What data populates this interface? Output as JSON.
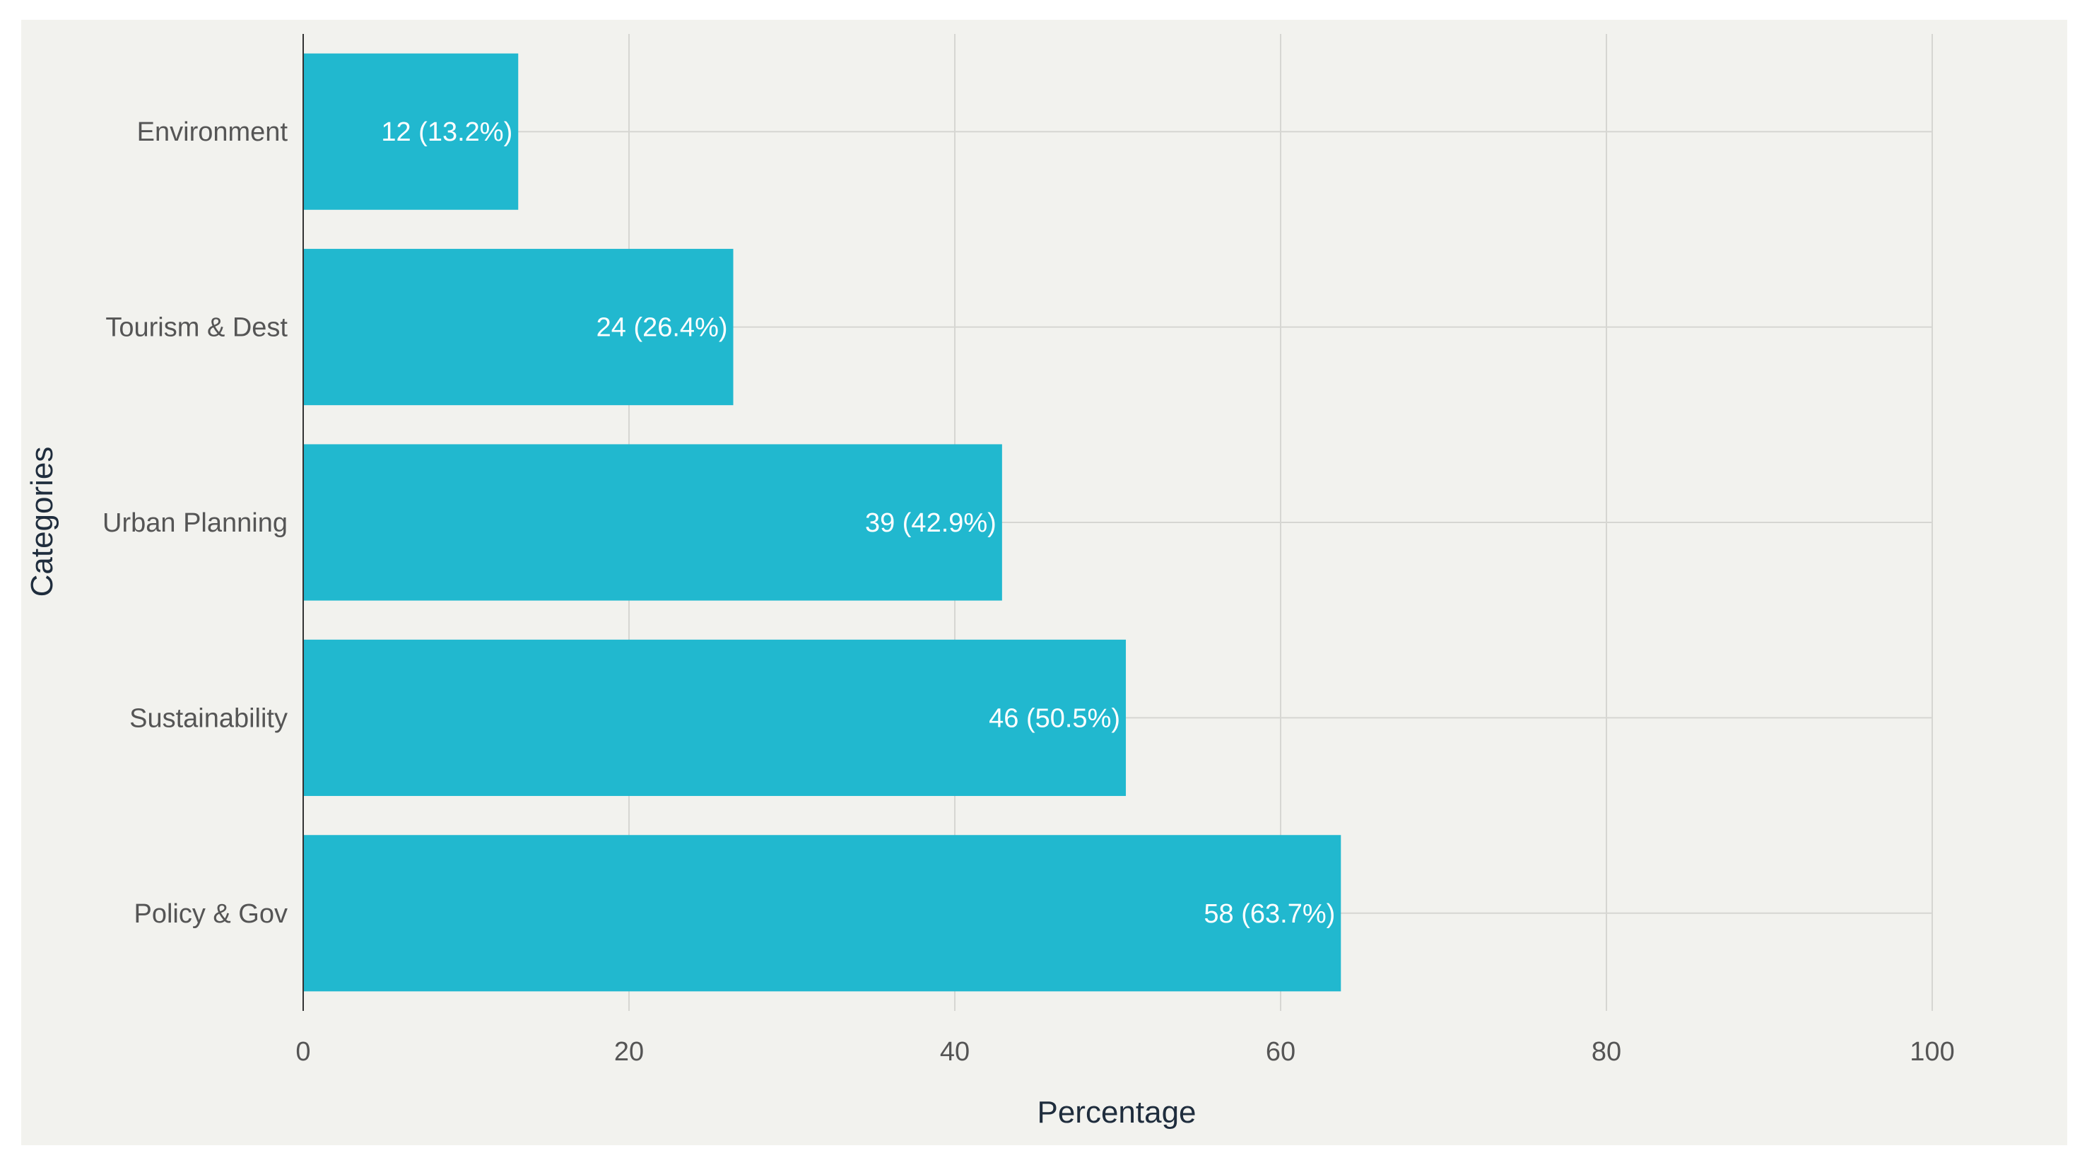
{
  "chart_data": {
    "type": "bar",
    "orientation": "horizontal",
    "title": "",
    "xlabel": "Percentage",
    "ylabel": "Categories",
    "xlim": [
      0,
      100
    ],
    "xticks": [
      0,
      20,
      40,
      60,
      80,
      100
    ],
    "grid": true,
    "bar_color": "#21b8cf",
    "categories": [
      "Environment",
      "Tourism & Dest",
      "Urban Planning",
      "Sustainability",
      "Policy & Gov"
    ],
    "values": [
      13.2,
      26.4,
      42.9,
      50.5,
      63.7
    ],
    "counts": [
      12,
      24,
      39,
      46,
      58
    ],
    "data_labels": [
      "12 (13.2%)",
      "24 (26.4%)",
      "39 (42.9%)",
      "46 (50.5%)",
      "58 (63.7%)"
    ]
  }
}
